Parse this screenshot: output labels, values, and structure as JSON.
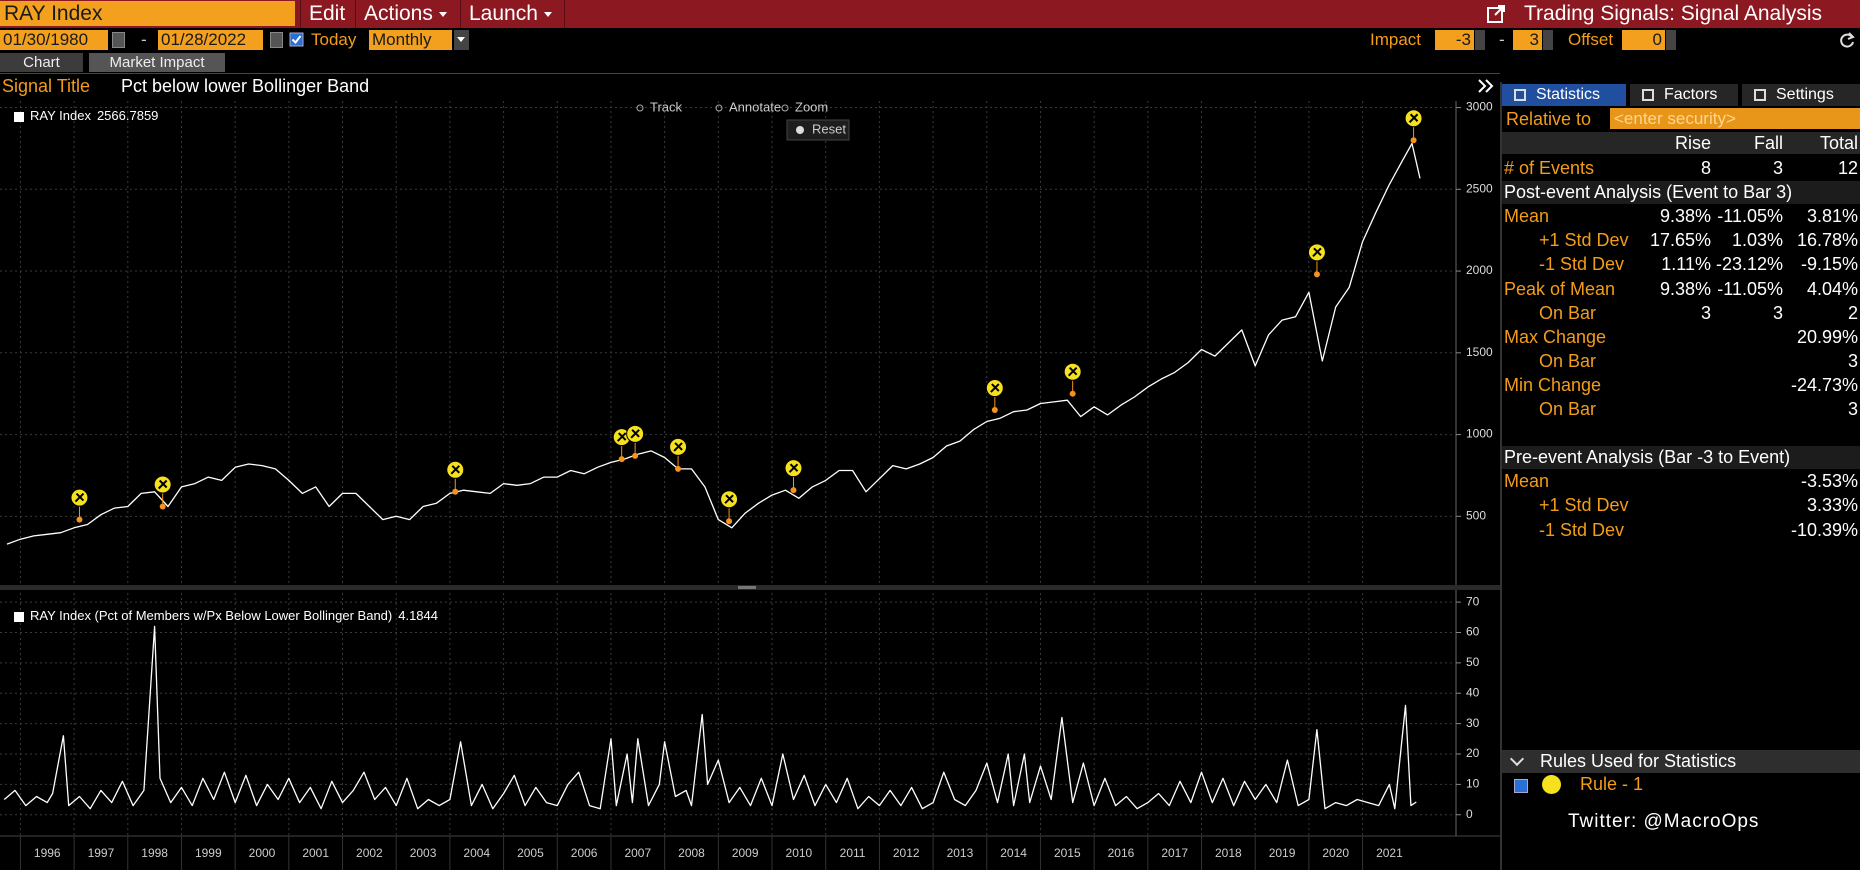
{
  "header": {
    "security": "RAY Index",
    "menus": [
      "Edit",
      "Actions",
      "Launch"
    ],
    "title": "Trading Signals: Signal Analysis"
  },
  "controls": {
    "start_date": "01/30/1980",
    "range_separator": "-",
    "end_date": "01/28/2022",
    "today": "Today",
    "frequency": "Monthly",
    "impact_label": "Impact",
    "impact_from": -3,
    "impact_separator": "-",
    "impact_to": 3,
    "offset_label": "Offset",
    "offset": 0
  },
  "tabs": [
    "Chart",
    "Market Impact"
  ],
  "signal": {
    "label": "Signal Title",
    "value": "Pct below lower Bollinger Band"
  },
  "toolbar": [
    "Track",
    "Annotate",
    "Zoom",
    "Reset"
  ],
  "price_chart": {
    "type": "line",
    "legend": "RAY Index",
    "last_value": 2566.7859,
    "color": "#ffffff",
    "x": [
      1995.75,
      1996,
      1996.25,
      1996.5,
      1996.75,
      1997,
      1997.25,
      1997.5,
      1997.75,
      1998,
      1998.25,
      1998.5,
      1998.75,
      1999,
      1999.25,
      1999.5,
      1999.75,
      2000,
      2000.25,
      2000.5,
      2000.75,
      2001,
      2001.25,
      2001.5,
      2001.75,
      2002,
      2002.25,
      2002.5,
      2002.75,
      2003,
      2003.25,
      2003.5,
      2003.75,
      2004,
      2004.25,
      2004.5,
      2004.75,
      2005,
      2005.25,
      2005.5,
      2005.75,
      2006,
      2006.25,
      2006.5,
      2006.75,
      2007,
      2007.25,
      2007.5,
      2007.75,
      2008,
      2008.25,
      2008.5,
      2008.75,
      2009,
      2009.25,
      2009.5,
      2009.75,
      2010,
      2010.25,
      2010.5,
      2010.75,
      2011,
      2011.25,
      2011.5,
      2011.75,
      2012,
      2012.25,
      2012.5,
      2012.75,
      2013,
      2013.25,
      2013.5,
      2013.75,
      2014,
      2014.25,
      2014.5,
      2014.75,
      2015,
      2015.25,
      2015.5,
      2015.75,
      2016,
      2016.25,
      2016.5,
      2016.75,
      2017,
      2017.25,
      2017.5,
      2017.75,
      2018,
      2018.25,
      2018.5,
      2018.75,
      2019,
      2019.25,
      2019.5,
      2019.75,
      2020,
      2020.25,
      2020.5,
      2020.75,
      2021,
      2021.25,
      2021.5,
      2021.75,
      2021.92,
      2022.07
    ],
    "values": [
      330,
      360,
      380,
      390,
      400,
      430,
      450,
      510,
      550,
      560,
      640,
      650,
      560,
      680,
      700,
      740,
      720,
      800,
      820,
      810,
      790,
      720,
      640,
      680,
      560,
      640,
      640,
      560,
      480,
      500,
      480,
      560,
      580,
      640,
      660,
      650,
      640,
      700,
      690,
      700,
      740,
      740,
      780,
      760,
      800,
      830,
      850,
      880,
      900,
      860,
      790,
      790,
      680,
      480,
      430,
      520,
      580,
      630,
      660,
      610,
      680,
      720,
      780,
      780,
      650,
      730,
      810,
      790,
      820,
      860,
      930,
      960,
      1030,
      1080,
      1100,
      1140,
      1150,
      1190,
      1200,
      1210,
      1110,
      1170,
      1120,
      1180,
      1230,
      1290,
      1340,
      1380,
      1440,
      1520,
      1480,
      1560,
      1640,
      1420,
      1610,
      1700,
      1720,
      1870,
      1450,
      1780,
      1900,
      2180,
      2360,
      2530,
      2680,
      2780,
      2566.7859
    ],
    "events": {
      "color": "#f7931a",
      "x": [
        1997.1,
        1998.65,
        2004.1,
        2007.2,
        2007.45,
        2008.25,
        2009.2,
        2010.4,
        2014.15,
        2015.6,
        2020.15,
        2021.95
      ],
      "values": [
        480,
        560,
        650,
        850,
        870,
        790,
        470,
        660,
        1150,
        1250,
        1980,
        2800
      ]
    },
    "xlim": [
      1995.62,
      2022.74
    ],
    "xticks": [
      1996,
      1997,
      1998,
      1999,
      2000,
      2001,
      2002,
      2003,
      2004,
      2005,
      2006,
      2007,
      2008,
      2009,
      2010,
      2011,
      2012,
      2013,
      2014,
      2015,
      2016,
      2017,
      2018,
      2019,
      2020,
      2021
    ],
    "ylim": [
      80,
      3040
    ],
    "yticks": [
      500,
      1000,
      1500,
      2000,
      2500,
      3000
    ],
    "grid": true
  },
  "indicator_chart": {
    "type": "line",
    "legend": "RAY Index (Pct of Members w/Px Below Lower Bollinger Band)",
    "last_value": 4.1844,
    "color": "#ffffff",
    "x": [
      1995.7,
      1995.9,
      1996.1,
      1996.3,
      1996.5,
      1996.6,
      1996.8,
      1996.9,
      1997.1,
      1997.3,
      1997.5,
      1997.7,
      1997.9,
      1998.1,
      1998.3,
      1998.5,
      1998.6,
      1998.8,
      1999,
      1999.2,
      1999.4,
      1999.6,
      1999.8,
      2000,
      2000.2,
      2000.4,
      2000.6,
      2000.8,
      2001,
      2001.2,
      2001.4,
      2001.6,
      2001.8,
      2002,
      2002.2,
      2002.4,
      2002.6,
      2002.8,
      2003,
      2003.2,
      2003.4,
      2003.6,
      2003.8,
      2004,
      2004.2,
      2004.4,
      2004.6,
      2004.8,
      2005,
      2005.2,
      2005.4,
      2005.6,
      2005.8,
      2006,
      2006.2,
      2006.4,
      2006.6,
      2006.8,
      2007,
      2007.1,
      2007.3,
      2007.4,
      2007.5,
      2007.7,
      2007.9,
      2008,
      2008.2,
      2008.4,
      2008.5,
      2008.7,
      2008.8,
      2009,
      2009.2,
      2009.4,
      2009.6,
      2009.8,
      2010,
      2010.2,
      2010.4,
      2010.6,
      2010.8,
      2011,
      2011.2,
      2011.4,
      2011.6,
      2011.8,
      2012,
      2012.2,
      2012.4,
      2012.6,
      2012.8,
      2013,
      2013.2,
      2013.4,
      2013.6,
      2013.8,
      2014,
      2014.2,
      2014.4,
      2014.5,
      2014.7,
      2014.8,
      2015,
      2015.2,
      2015.4,
      2015.6,
      2015.8,
      2016,
      2016.2,
      2016.4,
      2016.6,
      2016.8,
      2017,
      2017.2,
      2017.4,
      2017.6,
      2017.8,
      2018,
      2018.2,
      2018.4,
      2018.6,
      2018.8,
      2019,
      2019.2,
      2019.4,
      2019.6,
      2019.8,
      2020,
      2020.15,
      2020.3,
      2020.5,
      2020.7,
      2020.9,
      2021.1,
      2021.3,
      2021.5,
      2021.6,
      2021.8,
      2021.9,
      2022
    ],
    "values": [
      5,
      8,
      3,
      6,
      4,
      7,
      26,
      3,
      6,
      2,
      8,
      4,
      11,
      3,
      8,
      62,
      12,
      4,
      9,
      3,
      12,
      5,
      14,
      4,
      13,
      3,
      10,
      5,
      12,
      4,
      9,
      2,
      11,
      4,
      8,
      14,
      5,
      9,
      3,
      12,
      2,
      5,
      3,
      5,
      24,
      3,
      10,
      2,
      7,
      13,
      3,
      9,
      4,
      3,
      10,
      14,
      3,
      2,
      25,
      3,
      20,
      4,
      25,
      3,
      10,
      24,
      6,
      8,
      3,
      33,
      10,
      18,
      4,
      9,
      3,
      12,
      3,
      20,
      5,
      13,
      3,
      10,
      4,
      12,
      2,
      6,
      3,
      8,
      3,
      9,
      2,
      4,
      14,
      5,
      3,
      8,
      17,
      4,
      20,
      3,
      20,
      4,
      16,
      5,
      32,
      4,
      17,
      3,
      12,
      3,
      6,
      2,
      4,
      7,
      3,
      11,
      4,
      14,
      4,
      12,
      3,
      11,
      5,
      10,
      4,
      18,
      3,
      5,
      28,
      2,
      4,
      3,
      5,
      4,
      3,
      10,
      2,
      36,
      3,
      4.1844
    ],
    "xlim": [
      1995.62,
      2022.74
    ],
    "xticks": [
      1996,
      1997,
      1998,
      1999,
      2000,
      2001,
      2002,
      2003,
      2004,
      2005,
      2006,
      2007,
      2008,
      2009,
      2010,
      2011,
      2012,
      2013,
      2014,
      2015,
      2016,
      2017,
      2018,
      2019,
      2020,
      2021
    ],
    "ylim": [
      -7,
      73
    ],
    "yticks": [
      0,
      10,
      20,
      30,
      40,
      50,
      60,
      70
    ],
    "grid": true
  },
  "panel": {
    "tabs": [
      "Statistics",
      "Factors",
      "Settings"
    ],
    "relative_label": "Relative to",
    "relative_placeholder": "<enter security>",
    "columns": [
      "Rise",
      "Fall",
      "Total"
    ],
    "rows": [
      [
        "# of Events",
        8,
        3,
        12
      ],
      [
        "Post-event Analysis (Event to Bar 3)"
      ],
      [
        "Mean",
        "9.38%",
        "-11.05%",
        "3.81%"
      ],
      [
        "+1 Std Dev",
        "17.65%",
        "1.03%",
        "16.78%"
      ],
      [
        "-1 Std Dev",
        "1.11%",
        "-23.12%",
        "-9.15%"
      ],
      [
        "Peak of Mean",
        "9.38%",
        "-11.05%",
        "4.04%"
      ],
      [
        "On Bar",
        3,
        3,
        2
      ],
      [
        "Max Change",
        null,
        null,
        "20.99%"
      ],
      [
        "On Bar",
        null,
        null,
        3
      ],
      [
        "Min Change",
        null,
        null,
        "-24.73%"
      ],
      [
        "On Bar",
        null,
        null,
        3
      ],
      [
        "Pre-event Analysis (Bar -3 to Event)"
      ],
      [
        "Mean",
        null,
        null,
        "-3.53%"
      ],
      [
        "+1 Std Dev",
        null,
        null,
        "3.33%"
      ],
      [
        "-1 Std Dev",
        null,
        null,
        "-10.39%"
      ]
    ],
    "rules_title": "Rules Used for Statistics",
    "rule": "Rule - 1",
    "watermark": "Twitter: @MacroOps"
  }
}
